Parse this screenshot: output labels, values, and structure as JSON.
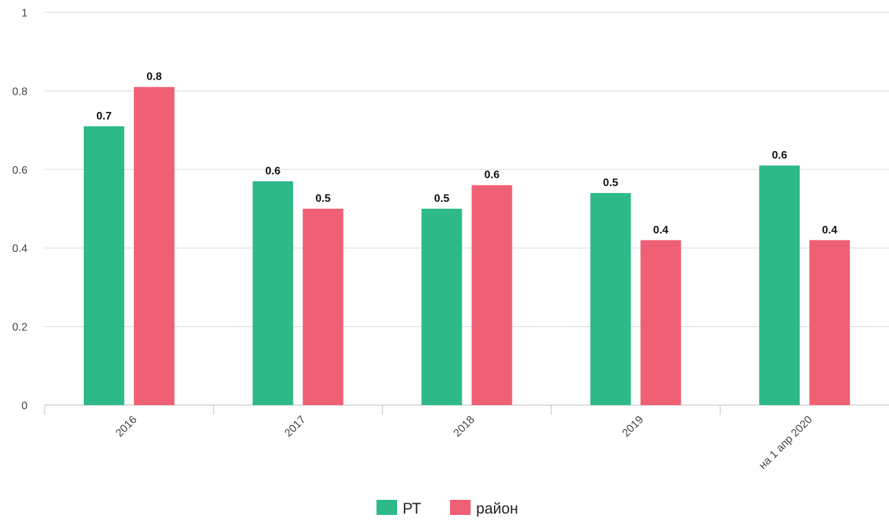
{
  "chart_data": {
    "type": "bar",
    "categories": [
      "2016",
      "2017",
      "2018",
      "2019",
      "на 1 апр 2020"
    ],
    "series": [
      {
        "name": "РТ",
        "color": "#2dba87",
        "values": [
          0.71,
          0.57,
          0.5,
          0.54,
          0.61
        ],
        "labels": [
          "0.7",
          "0.6",
          "0.5",
          "0.5",
          "0.6"
        ]
      },
      {
        "name": "район",
        "color": "#f06074",
        "values": [
          0.81,
          0.5,
          0.56,
          0.42,
          0.42
        ],
        "labels": [
          "0.8",
          "0.5",
          "0.6",
          "0.4",
          "0.4"
        ]
      }
    ],
    "y_ticks": [
      "0",
      "0.2",
      "0.4",
      "0.6",
      "0.8",
      "1"
    ],
    "ylim": [
      0,
      1
    ],
    "grid": true,
    "legend_position": "bottom-center",
    "title": "",
    "xlabel": "",
    "ylabel": ""
  }
}
